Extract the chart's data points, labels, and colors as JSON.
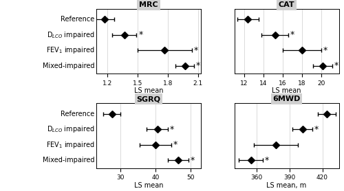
{
  "panels": [
    {
      "title": "MRC",
      "xlabel": "LS mean",
      "xlim": [
        1.09,
        2.13
      ],
      "xticks": [
        1.2,
        1.5,
        1.8,
        2.1
      ],
      "xtick_labels": [
        "1.2",
        "1.5",
        "1.8",
        "2.1"
      ],
      "means": [
        1.17,
        1.37,
        1.77,
        1.97
      ],
      "lo": [
        1.07,
        1.25,
        1.5,
        1.88
      ],
      "hi": [
        1.27,
        1.49,
        2.04,
        2.06
      ],
      "sig": [
        false,
        true,
        true,
        true
      ]
    },
    {
      "title": "CAT",
      "xlabel": "LS mean",
      "xlim": [
        11.0,
        21.8
      ],
      "xticks": [
        12,
        14,
        16,
        18,
        20
      ],
      "xtick_labels": [
        "12",
        "14",
        "16",
        "18",
        "20"
      ],
      "means": [
        12.4,
        15.2,
        18.0,
        20.1
      ],
      "lo": [
        11.3,
        13.8,
        16.0,
        19.1
      ],
      "hi": [
        13.5,
        16.6,
        20.0,
        21.1
      ],
      "sig": [
        false,
        true,
        true,
        true
      ]
    },
    {
      "title": "SGRQ",
      "xlabel": "LS mean",
      "xlim": [
        23.0,
        53.0
      ],
      "xticks": [
        30,
        40,
        50
      ],
      "xtick_labels": [
        "30",
        "40",
        "50"
      ],
      "means": [
        27.5,
        40.5,
        40.0,
        46.5
      ],
      "lo": [
        25.0,
        37.5,
        35.5,
        43.5
      ],
      "hi": [
        30.0,
        43.5,
        44.5,
        49.5
      ],
      "sig": [
        false,
        true,
        true,
        true
      ]
    },
    {
      "title": "6MWD",
      "xlabel": "LS mean, m",
      "xlim": [
        340.0,
        435.0
      ],
      "xticks": [
        360,
        390,
        420
      ],
      "xtick_labels": [
        "360",
        "390",
        "420"
      ],
      "means": [
        424.0,
        402.0,
        378.0,
        355.0
      ],
      "lo": [
        416.0,
        393.0,
        358.0,
        344.0
      ],
      "hi": [
        432.0,
        411.0,
        398.0,
        366.0
      ],
      "sig": [
        false,
        true,
        false,
        true
      ]
    }
  ],
  "groups": [
    "Reference",
    "D$_{LCO}$ impaired",
    "FEV$_1$ impaired",
    "Mixed-impaired"
  ],
  "marker": "D",
  "marker_size": 5,
  "capsize": 2.5,
  "line_color": "black",
  "marker_color": "black",
  "grid_color": "#cccccc",
  "panel_title_bg": "#d0d0d0",
  "sig_color": "black",
  "sig_fontsize": 9,
  "tick_fontsize": 6.5,
  "title_fontsize": 8,
  "xlabel_fontsize": 7,
  "row_label_fontsize": 7
}
